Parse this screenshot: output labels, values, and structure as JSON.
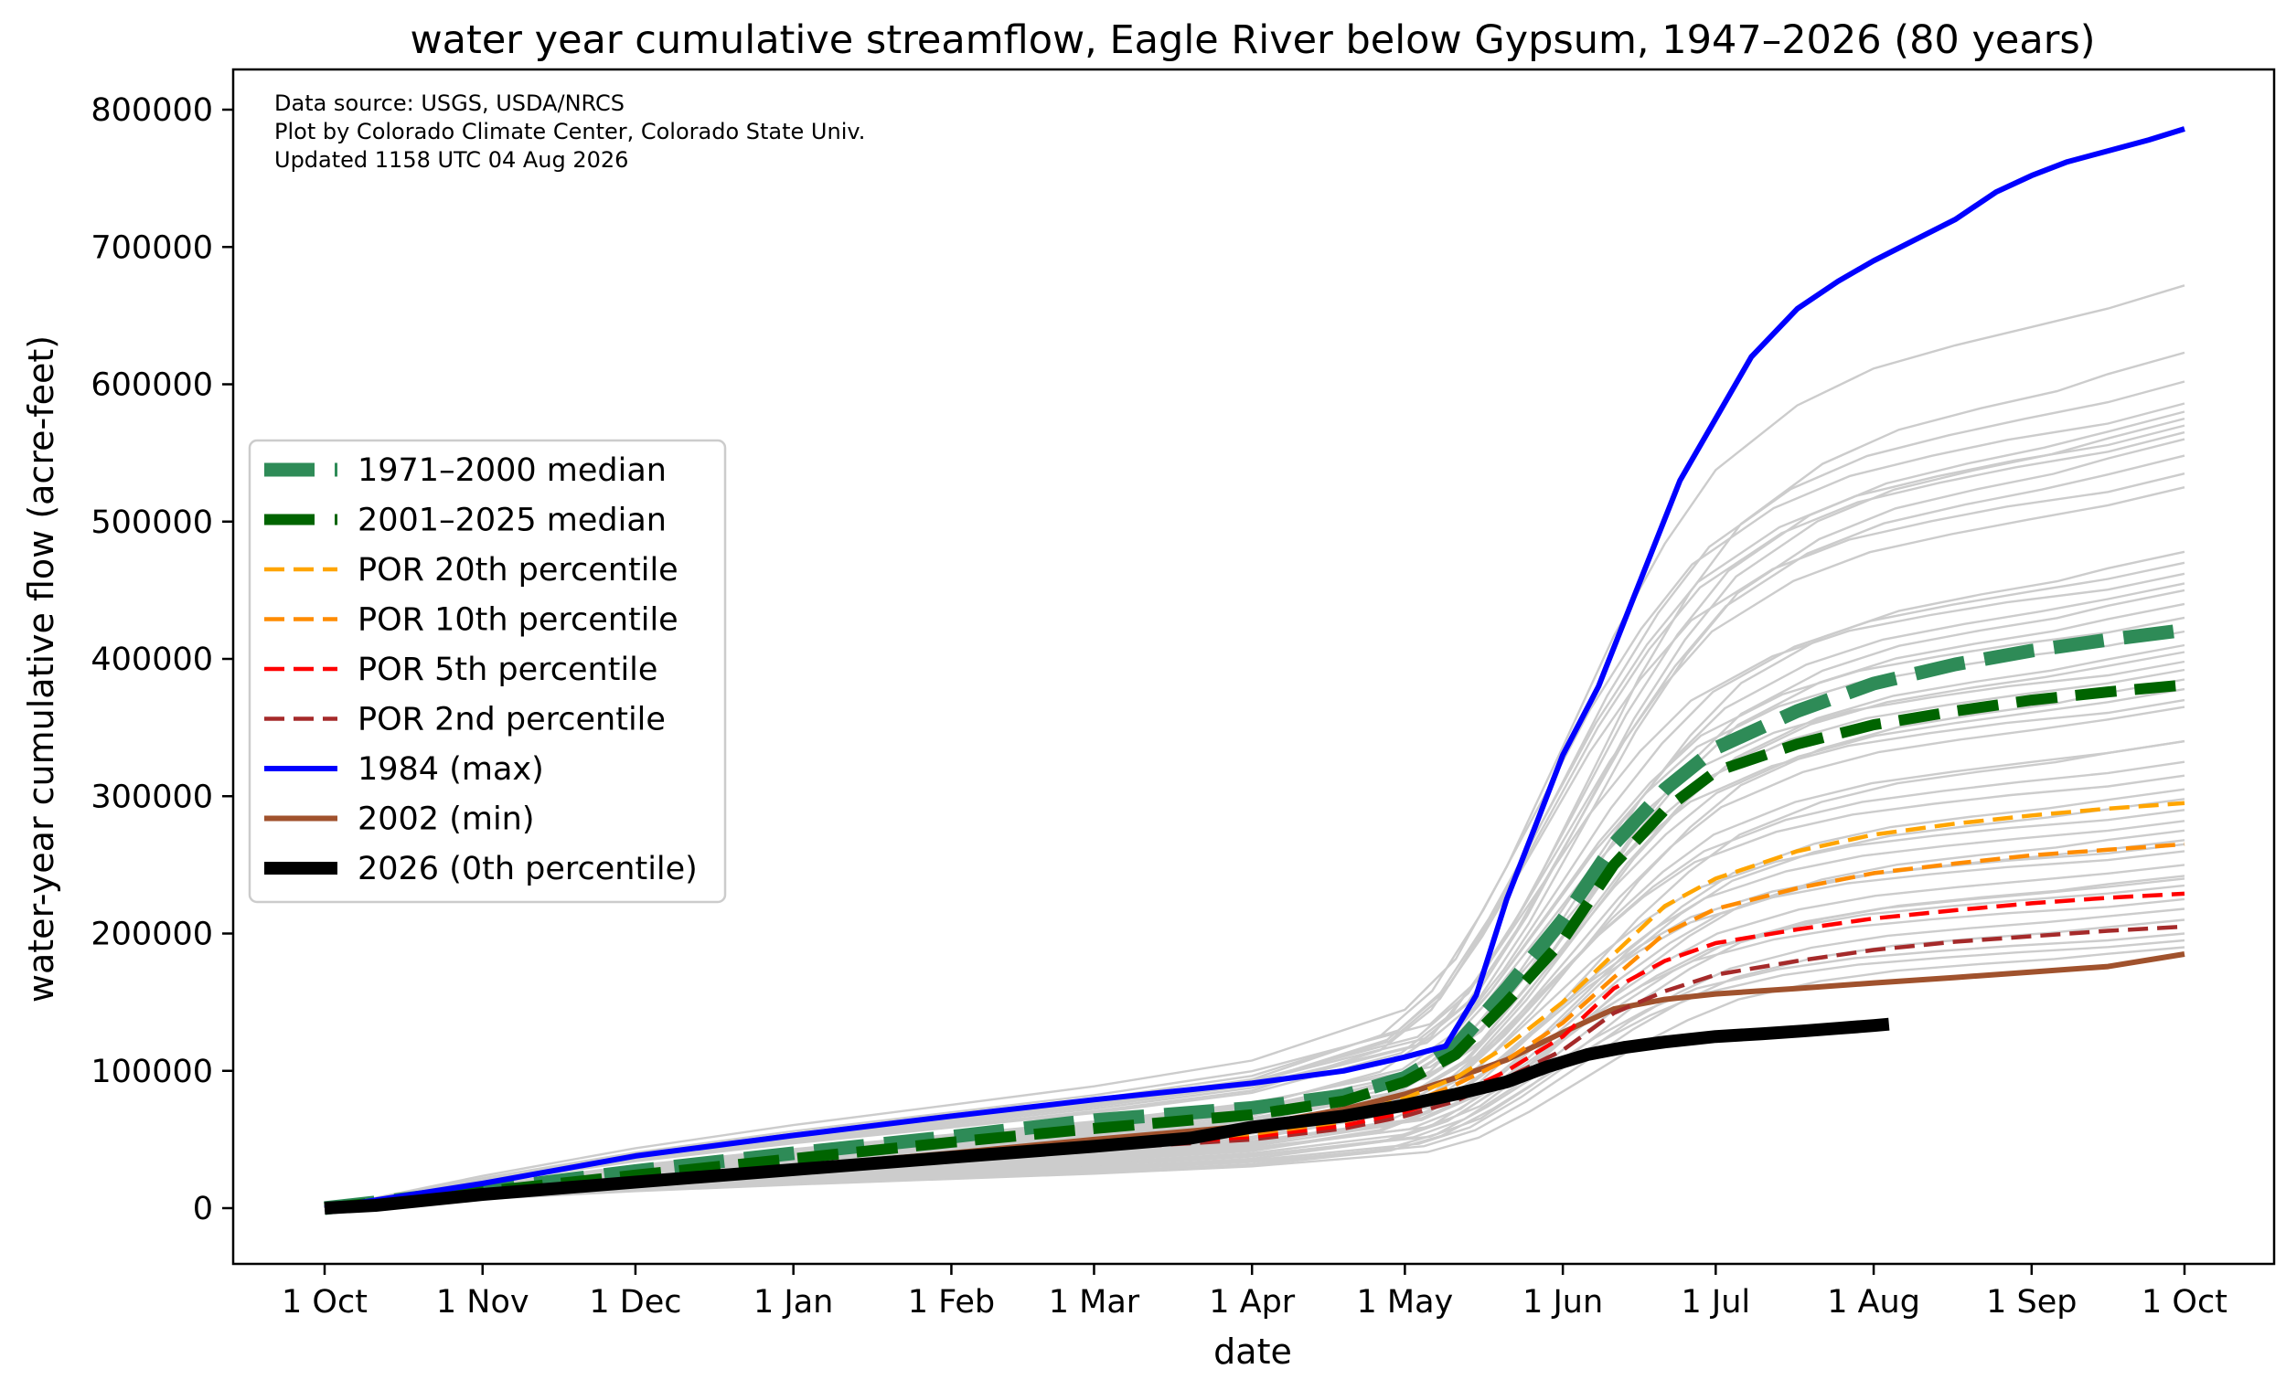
{
  "chart_data": {
    "type": "line",
    "title": "water year cumulative streamflow, Eagle River below Gypsum, 1947–2026 (80 years)",
    "xlabel": "date",
    "ylabel": "water-year cumulative flow (acre-feet)",
    "xlim": [
      0,
      366
    ],
    "ylim": [
      -40000,
      800000
    ],
    "grid": false,
    "legend_placement": "center-left",
    "x_ticks": [
      {
        "x": 0,
        "label": "1 Oct"
      },
      {
        "x": 31,
        "label": "1 Nov"
      },
      {
        "x": 61,
        "label": "1 Dec"
      },
      {
        "x": 92,
        "label": "1 Jan"
      },
      {
        "x": 123,
        "label": "1 Feb"
      },
      {
        "x": 151,
        "label": "1 Mar"
      },
      {
        "x": 182,
        "label": "1 Apr"
      },
      {
        "x": 212,
        "label": "1 May"
      },
      {
        "x": 243,
        "label": "1 Jun"
      },
      {
        "x": 273,
        "label": "1 Jul"
      },
      {
        "x": 304,
        "label": "1 Aug"
      },
      {
        "x": 335,
        "label": "1 Sep"
      },
      {
        "x": 365,
        "label": "1 Oct"
      }
    ],
    "y_ticks": [
      0,
      100000,
      200000,
      300000,
      400000,
      500000,
      600000,
      700000,
      800000
    ],
    "y_tick_labels": [
      "0",
      "100000",
      "200000",
      "300000",
      "400000",
      "500000",
      "600000",
      "700000",
      "800000"
    ],
    "source_text": [
      "Data source: USGS, USDA/NRCS",
      "Plot by Colorado Climate Center, Colorado State Univ.",
      "Updated 1158 UTC 04 Aug 2026"
    ],
    "x_axis_note": "x values are day of water year (0 = 1 Oct)",
    "background_years": {
      "color": "#cccccc",
      "final_totals": [
        672000,
        623000,
        602000,
        586000,
        580000,
        575000,
        570000,
        565000,
        560000,
        548000,
        535000,
        525000,
        478000,
        470000,
        462000,
        455000,
        440000,
        430000,
        420000,
        410000,
        405000,
        398000,
        392000,
        385000,
        378000,
        370000,
        365000,
        340000,
        325000,
        315000,
        305000,
        298000,
        290000,
        282000,
        275000,
        268000,
        260000,
        250000,
        242000,
        235000,
        225000,
        218000,
        210000,
        200000,
        195000,
        190000,
        240000,
        265000,
        340000,
        450000
      ],
      "profile_x": [
        0,
        31,
        61,
        92,
        123,
        151,
        182,
        212,
        222,
        232,
        243,
        253,
        263,
        273,
        289,
        304,
        320,
        335,
        350,
        365
      ],
      "profile_fraction": [
        0,
        0.035,
        0.065,
        0.09,
        0.112,
        0.132,
        0.16,
        0.215,
        0.27,
        0.37,
        0.5,
        0.62,
        0.72,
        0.8,
        0.87,
        0.91,
        0.935,
        0.955,
        0.975,
        1.0
      ]
    },
    "series": [
      {
        "name": "1971–2000 median",
        "color": "#2e8b57",
        "style": "dashed",
        "x": [
          0,
          31,
          61,
          92,
          123,
          151,
          182,
          200,
          212,
          222,
          232,
          243,
          253,
          263,
          273,
          289,
          304,
          320,
          335,
          350,
          365
        ],
        "y": [
          0,
          13000,
          27000,
          40000,
          52000,
          64000,
          73000,
          82000,
          95000,
          118000,
          160000,
          210000,
          265000,
          305000,
          335000,
          362000,
          382000,
          396000,
          406000,
          414000,
          421000
        ]
      },
      {
        "name": "2001–2025 median",
        "color": "#006400",
        "style": "dashed",
        "x": [
          0,
          31,
          61,
          92,
          123,
          151,
          182,
          200,
          212,
          222,
          232,
          243,
          253,
          263,
          273,
          289,
          304,
          320,
          335,
          350,
          365
        ],
        "y": [
          0,
          12000,
          24000,
          36000,
          48000,
          58000,
          68000,
          78000,
          92000,
          112000,
          150000,
          195000,
          250000,
          290000,
          318000,
          338000,
          352000,
          362000,
          370000,
          376000,
          381000
        ]
      },
      {
        "name": "POR 20th percentile",
        "color": "#ffa500",
        "style": "dashed",
        "x": [
          0,
          31,
          61,
          92,
          123,
          151,
          182,
          200,
          212,
          222,
          232,
          243,
          253,
          263,
          273,
          289,
          304,
          320,
          335,
          350,
          365
        ],
        "y": [
          0,
          11000,
          21000,
          31000,
          40000,
          48000,
          57000,
          67000,
          80000,
          95000,
          118000,
          150000,
          185000,
          220000,
          240000,
          260000,
          272000,
          280000,
          286000,
          291000,
          295000
        ]
      },
      {
        "name": "POR 10th percentile",
        "color": "#ff8c00",
        "style": "dashed",
        "x": [
          0,
          31,
          61,
          92,
          123,
          151,
          182,
          200,
          212,
          222,
          232,
          243,
          253,
          263,
          273,
          289,
          304,
          320,
          335,
          350,
          365
        ],
        "y": [
          0,
          10000,
          20000,
          29000,
          38000,
          46000,
          54000,
          63000,
          75000,
          90000,
          108000,
          135000,
          168000,
          200000,
          218000,
          233000,
          244000,
          251000,
          257000,
          261000,
          265000
        ]
      },
      {
        "name": "POR 5th percentile",
        "color": "#ff0000",
        "style": "dashed",
        "x": [
          0,
          31,
          61,
          92,
          123,
          151,
          182,
          200,
          212,
          222,
          232,
          243,
          253,
          263,
          273,
          289,
          304,
          320,
          335,
          350,
          365
        ],
        "y": [
          0,
          10000,
          19000,
          28000,
          36000,
          44000,
          52000,
          60000,
          70000,
          82000,
          100000,
          125000,
          160000,
          180000,
          193000,
          203000,
          211000,
          217000,
          222000,
          226000,
          229000
        ]
      },
      {
        "name": "POR 2nd percentile",
        "color": "#a52a2a",
        "style": "dashed",
        "x": [
          0,
          31,
          61,
          92,
          123,
          151,
          182,
          200,
          212,
          222,
          232,
          243,
          253,
          263,
          273,
          289,
          304,
          320,
          335,
          350,
          365
        ],
        "y": [
          0,
          9500,
          18000,
          27000,
          35000,
          43000,
          50000,
          58000,
          67000,
          78000,
          95000,
          115000,
          142000,
          158000,
          170000,
          180000,
          188000,
          194000,
          198000,
          202000,
          205000
        ]
      },
      {
        "name": "1984 (max)",
        "color": "#0000ff",
        "style": "solid",
        "x": [
          0,
          31,
          61,
          92,
          123,
          151,
          182,
          200,
          212,
          220,
          226,
          232,
          238,
          243,
          250,
          258,
          266,
          273,
          280,
          289,
          297,
          304,
          312,
          320,
          328,
          335,
          342,
          350,
          358,
          365
        ],
        "y": [
          0,
          18000,
          38000,
          53000,
          67000,
          79000,
          91000,
          100000,
          110000,
          118000,
          155000,
          225000,
          282000,
          330000,
          380000,
          455000,
          530000,
          575000,
          620000,
          655000,
          675000,
          690000,
          705000,
          720000,
          740000,
          752000,
          762000,
          770000,
          778000,
          786000
        ]
      },
      {
        "name": "2002 (min)",
        "color": "#a0522d",
        "style": "solid",
        "x": [
          0,
          31,
          61,
          92,
          123,
          151,
          182,
          200,
          212,
          222,
          232,
          243,
          253,
          263,
          273,
          289,
          304,
          320,
          335,
          350,
          365
        ],
        "y": [
          0,
          10000,
          20000,
          30000,
          40000,
          50000,
          60000,
          72000,
          83000,
          95000,
          108000,
          128000,
          145000,
          152000,
          156000,
          160000,
          164000,
          168000,
          172000,
          176000,
          185000
        ]
      },
      {
        "name": "2026 (0th percentile)",
        "color": "#000000",
        "style": "solid",
        "x": [
          0,
          10,
          31,
          61,
          92,
          123,
          151,
          170,
          182,
          200,
          212,
          222,
          232,
          240,
          248,
          255,
          263,
          273,
          282,
          290,
          297,
          304,
          307
        ],
        "y": [
          0,
          2000,
          10000,
          19000,
          28000,
          37000,
          45000,
          51000,
          59000,
          67000,
          75000,
          83000,
          92000,
          103000,
          112000,
          117000,
          121000,
          125000,
          127000,
          129000,
          131000,
          133000,
          134000
        ]
      }
    ]
  }
}
